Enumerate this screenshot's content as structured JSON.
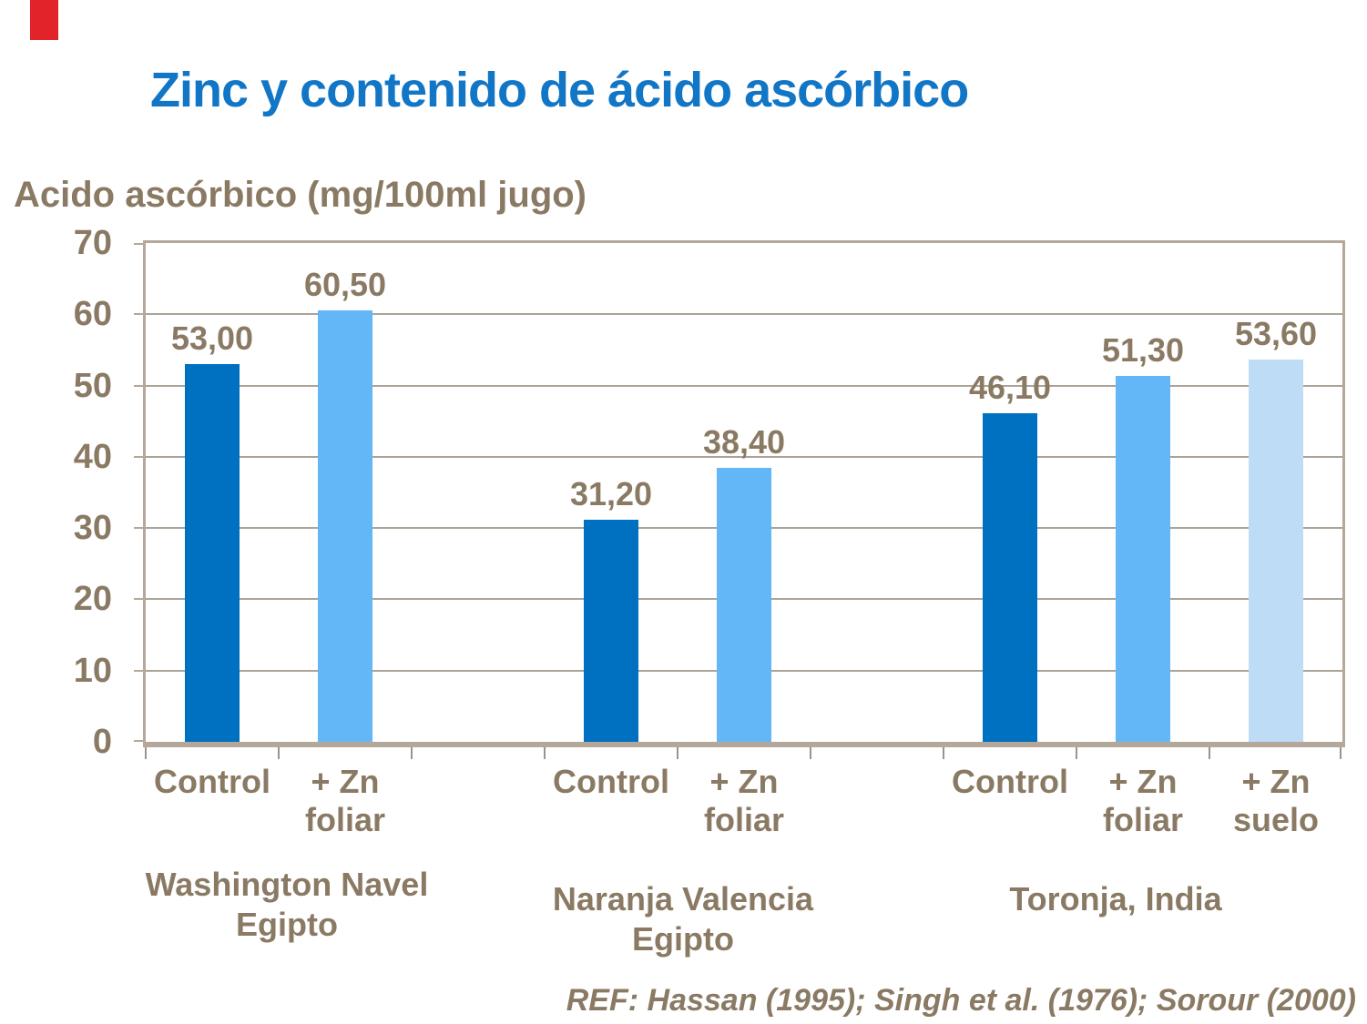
{
  "slide": {
    "title": "Zinc y contenido de ácido ascórbico",
    "reference": "REF: Hassan (1995); Singh et al. (1976); Sorour (2000)"
  },
  "colors": {
    "title_blue": "#1276c6",
    "text_brown": "#8a7a64",
    "corner_red": "#e2232a",
    "plot_border": "#b3a89a",
    "gridline": "#aca397",
    "bar_control": "#0070c0",
    "bar_zn_foliar": "#63b7f7",
    "bar_zn_suelo": "#bedcf6"
  },
  "chart_data": {
    "type": "bar",
    "title": "Zinc y contenido de ácido ascórbico",
    "ylabel": "Acido ascórbico (mg/100ml jugo)",
    "xlabel": "",
    "ylim": [
      0,
      70
    ],
    "yticks": [
      "0",
      "10",
      "20",
      "30",
      "40",
      "50",
      "60",
      "70"
    ],
    "grid": true,
    "legend": "none",
    "decimal_style": "comma",
    "groups": [
      {
        "name": "Washington Navel Egipto",
        "name_lines": [
          "Washington Navel",
          "Egipto"
        ],
        "bars": [
          {
            "category": "Control",
            "category_lines": [
              "Control"
            ],
            "series": "Control",
            "value": 53.0,
            "label": "53,00"
          },
          {
            "category": "+ Zn foliar",
            "category_lines": [
              "+ Zn",
              "foliar"
            ],
            "series": "+ Zn foliar",
            "value": 60.5,
            "label": "60,50"
          }
        ]
      },
      {
        "name": "Naranja Valencia Egipto",
        "name_lines": [
          "Naranja Valencia",
          "Egipto"
        ],
        "bars": [
          {
            "category": "Control",
            "category_lines": [
              "Control"
            ],
            "series": "Control",
            "value": 31.2,
            "label": "31,20"
          },
          {
            "category": "+ Zn foliar",
            "category_lines": [
              "+ Zn",
              "foliar"
            ],
            "series": "+ Zn foliar",
            "value": 38.4,
            "label": "38,40"
          }
        ]
      },
      {
        "name": "Toronja, India",
        "name_lines": [
          "Toronja, India"
        ],
        "bars": [
          {
            "category": "Control",
            "category_lines": [
              "Control"
            ],
            "series": "Control",
            "value": 46.1,
            "label": "46,10"
          },
          {
            "category": "+ Zn foliar",
            "category_lines": [
              "+ Zn",
              "foliar"
            ],
            "series": "+ Zn foliar",
            "value": 51.3,
            "label": "51,30"
          },
          {
            "category": "+ Zn suelo",
            "category_lines": [
              "+ Zn",
              "suelo"
            ],
            "series": "+ Zn suelo",
            "value": 53.6,
            "label": "53,60"
          }
        ]
      }
    ],
    "series_colors": {
      "Control": "#0070c0",
      "+ Zn foliar": "#63b7f7",
      "+ Zn suelo": "#bedcf6"
    },
    "reference": "REF: Hassan (1995); Singh et al. (1976); Sorour (2000)"
  }
}
